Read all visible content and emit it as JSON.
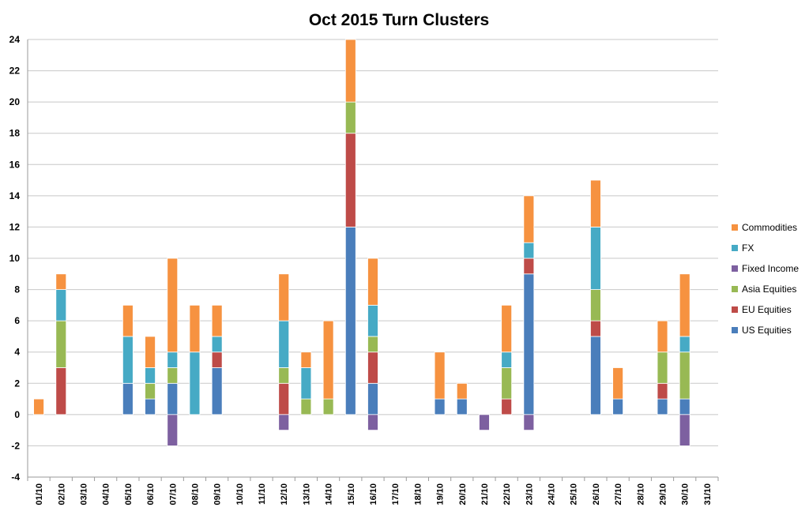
{
  "chart_data": {
    "type": "bar",
    "stacked": true,
    "title": "Oct 2015 Turn Clusters",
    "xlabel": "",
    "ylabel": "",
    "ylim": [
      -4,
      24
    ],
    "yticks": [
      -4,
      -2,
      0,
      2,
      4,
      6,
      8,
      10,
      12,
      14,
      16,
      18,
      20,
      22,
      24
    ],
    "grid": true,
    "legend_position": "right",
    "categories": [
      "01/10",
      "02/10",
      "03/10",
      "04/10",
      "05/10",
      "06/10",
      "07/10",
      "08/10",
      "09/10",
      "10/10",
      "11/10",
      "12/10",
      "13/10",
      "14/10",
      "15/10",
      "16/10",
      "17/10",
      "18/10",
      "19/10",
      "20/10",
      "21/10",
      "22/10",
      "23/10",
      "24/10",
      "25/10",
      "26/10",
      "27/10",
      "28/10",
      "29/10",
      "30/10",
      "31/10"
    ],
    "series": [
      {
        "name": "US Equities",
        "color": "#4a7ebb",
        "values": [
          0,
          0,
          0,
          0,
          2,
          1,
          2,
          0,
          3,
          0,
          0,
          0,
          0,
          0,
          12,
          2,
          0,
          0,
          1,
          1,
          0,
          0,
          9,
          0,
          0,
          5,
          1,
          0,
          1,
          1,
          0
        ]
      },
      {
        "name": "EU Equities",
        "color": "#be4b48",
        "values": [
          0,
          3,
          0,
          0,
          0,
          0,
          0,
          0,
          1,
          0,
          0,
          2,
          0,
          0,
          6,
          2,
          0,
          0,
          0,
          0,
          0,
          1,
          1,
          0,
          0,
          1,
          0,
          0,
          1,
          0,
          0
        ]
      },
      {
        "name": "Asia Equities",
        "color": "#98b954",
        "values": [
          0,
          3,
          0,
          0,
          0,
          1,
          1,
          0,
          0,
          0,
          0,
          1,
          1,
          1,
          2,
          1,
          0,
          0,
          0,
          0,
          0,
          2,
          0,
          0,
          0,
          2,
          0,
          0,
          2,
          3,
          0
        ]
      },
      {
        "name": "Fixed Income",
        "color": "#7d60a0",
        "values": [
          0,
          0,
          0,
          0,
          0,
          0,
          -2,
          0,
          0,
          0,
          0,
          -1,
          0,
          0,
          0,
          -1,
          0,
          0,
          0,
          0,
          -1,
          0,
          -1,
          0,
          0,
          0,
          0,
          0,
          0,
          -2,
          0
        ]
      },
      {
        "name": "FX",
        "color": "#46aac5",
        "values": [
          0,
          2,
          0,
          0,
          3,
          1,
          1,
          4,
          1,
          0,
          0,
          3,
          2,
          0,
          0,
          2,
          0,
          0,
          0,
          0,
          0,
          1,
          1,
          0,
          0,
          4,
          0,
          0,
          0,
          1,
          0
        ]
      },
      {
        "name": "Commodities",
        "color": "#f69240",
        "values": [
          1,
          1,
          0,
          0,
          2,
          2,
          6,
          3,
          2,
          0,
          0,
          3,
          1,
          5,
          4,
          3,
          0,
          0,
          3,
          1,
          0,
          3,
          3,
          0,
          0,
          3,
          2,
          0,
          2,
          4,
          0
        ]
      }
    ],
    "legend_order": [
      "Commodities",
      "FX",
      "Fixed Income",
      "Asia Equities",
      "EU Equities",
      "US Equities"
    ]
  }
}
